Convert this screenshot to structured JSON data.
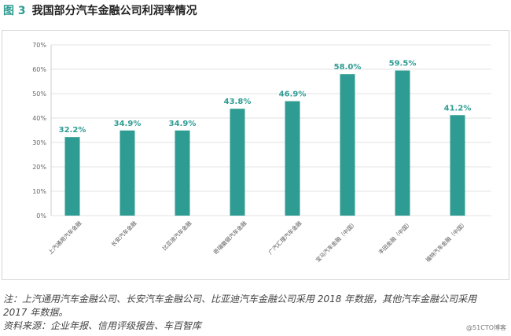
{
  "figure": {
    "label": "图 3",
    "title": "我国部分汽车金融公司利润率情况"
  },
  "chart_data": {
    "type": "bar",
    "title": "",
    "xlabel": "",
    "ylabel": "",
    "categories": [
      "上汽通用汽车金融",
      "长安汽车金融",
      "比亚迪汽车金融",
      "奇瑞徽银汽车金融",
      "广汽汇理汽车金融",
      "宝马汽车金融（中国）",
      "丰田金融（中国）",
      "福特汽车金融（中国）"
    ],
    "values": [
      32.2,
      34.9,
      34.9,
      43.8,
      46.9,
      58.0,
      59.5,
      41.2
    ],
    "data_labels": [
      "32.2%",
      "34.9%",
      "34.9%",
      "43.8%",
      "46.9%",
      "58.0%",
      "59.5%",
      "41.2%"
    ],
    "yticks": [
      0,
      10,
      20,
      30,
      40,
      50,
      60,
      70
    ],
    "ytick_labels": [
      "0%",
      "10%",
      "20%",
      "30%",
      "40%",
      "50%",
      "60%",
      "70%"
    ],
    "ylim": [
      0,
      70
    ],
    "grid": true,
    "bar_color": "#2f9c93"
  },
  "notes": {
    "line1": "注：上汽通用汽车金融公司、长安汽车金融公司、比亚迪汽车金融公司采用 2018 年数据，其他汽车金融公司采用",
    "line2": "2017 年数据。",
    "source": "资料来源：企业年报、信用评级报告、车百智库"
  },
  "watermark": "@51CTO博客"
}
